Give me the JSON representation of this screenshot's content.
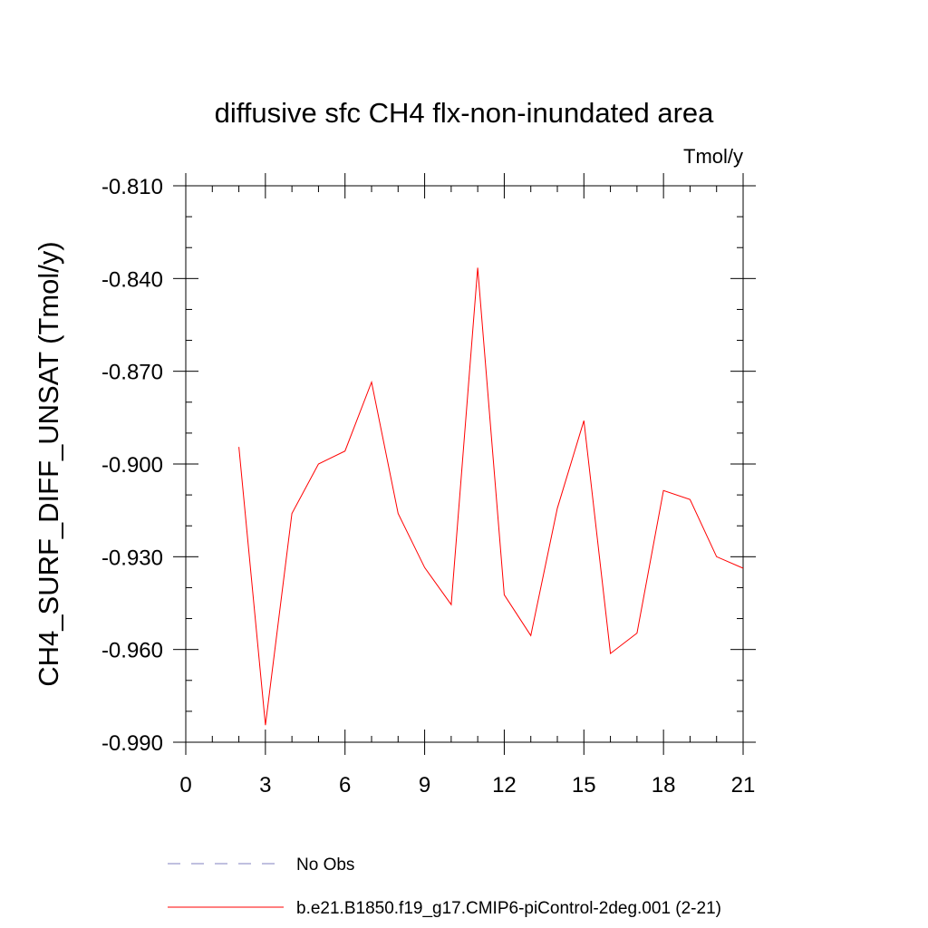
{
  "chart_data": {
    "type": "line",
    "title": "diffusive sfc CH4 flx-non-inundated area",
    "units_label": "Tmol/y",
    "xlabel": "",
    "ylabel": "CH4_SURF_DIFF_UNSAT  (Tmol/y)",
    "xlim": [
      0,
      21
    ],
    "ylim": [
      -0.99,
      -0.81
    ],
    "xticks": [
      0,
      3,
      6,
      9,
      12,
      15,
      18,
      21
    ],
    "xtick_labels": [
      "0",
      "3",
      "6",
      "9",
      "12",
      "15",
      "18",
      "21"
    ],
    "yticks": [
      -0.99,
      -0.96,
      -0.93,
      -0.9,
      -0.87,
      -0.84,
      -0.81
    ],
    "ytick_labels": [
      "-0.990",
      "-0.960",
      "-0.930",
      "-0.900",
      "-0.870",
      "-0.840",
      "-0.810"
    ],
    "grid": false,
    "legend_position": "bottom",
    "series": [
      {
        "name": "No Obs",
        "color": "#8080c0",
        "style": "dashed",
        "x": [],
        "values": []
      },
      {
        "name": "b.e21.B1850.f19_g17.CMIP6-piControl-2deg.001 (2-21)",
        "color": "#ff0000",
        "style": "solid",
        "x": [
          2,
          3,
          4,
          5,
          6,
          7,
          8,
          9,
          10,
          11,
          12,
          13,
          14,
          15,
          16,
          17,
          18,
          19,
          20,
          21
        ],
        "values": [
          -0.8945,
          -0.9845,
          -0.916,
          -0.9,
          -0.8958,
          -0.8735,
          -0.916,
          -0.9335,
          -0.9455,
          -0.8365,
          -0.9423,
          -0.9555,
          -0.9143,
          -0.886,
          -0.9613,
          -0.9547,
          -0.9086,
          -0.9115,
          -0.93,
          -0.9337
        ]
      }
    ]
  }
}
